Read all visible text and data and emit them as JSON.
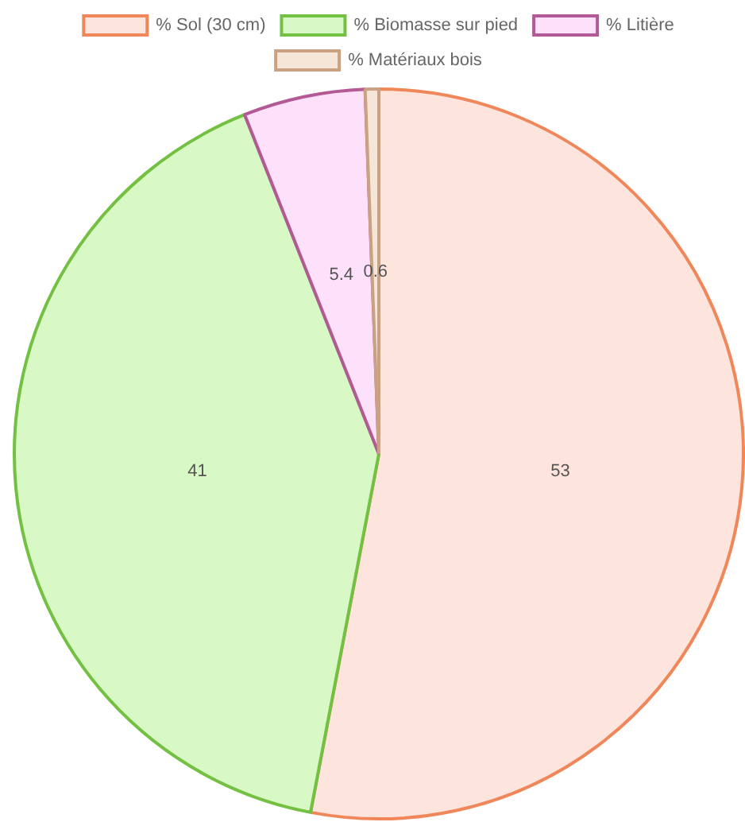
{
  "chart_data": {
    "type": "pie",
    "categories": [
      "% Sol (30 cm)",
      "% Biomasse sur pied",
      "% Litière",
      "% Matériaux bois"
    ],
    "values": [
      53,
      41,
      5.4,
      0.6
    ],
    "colors": [
      "#fde4dd",
      "#d8f8c6",
      "#fde0fa",
      "#f6e6d8"
    ],
    "data_labels": true,
    "legend": "top"
  }
}
